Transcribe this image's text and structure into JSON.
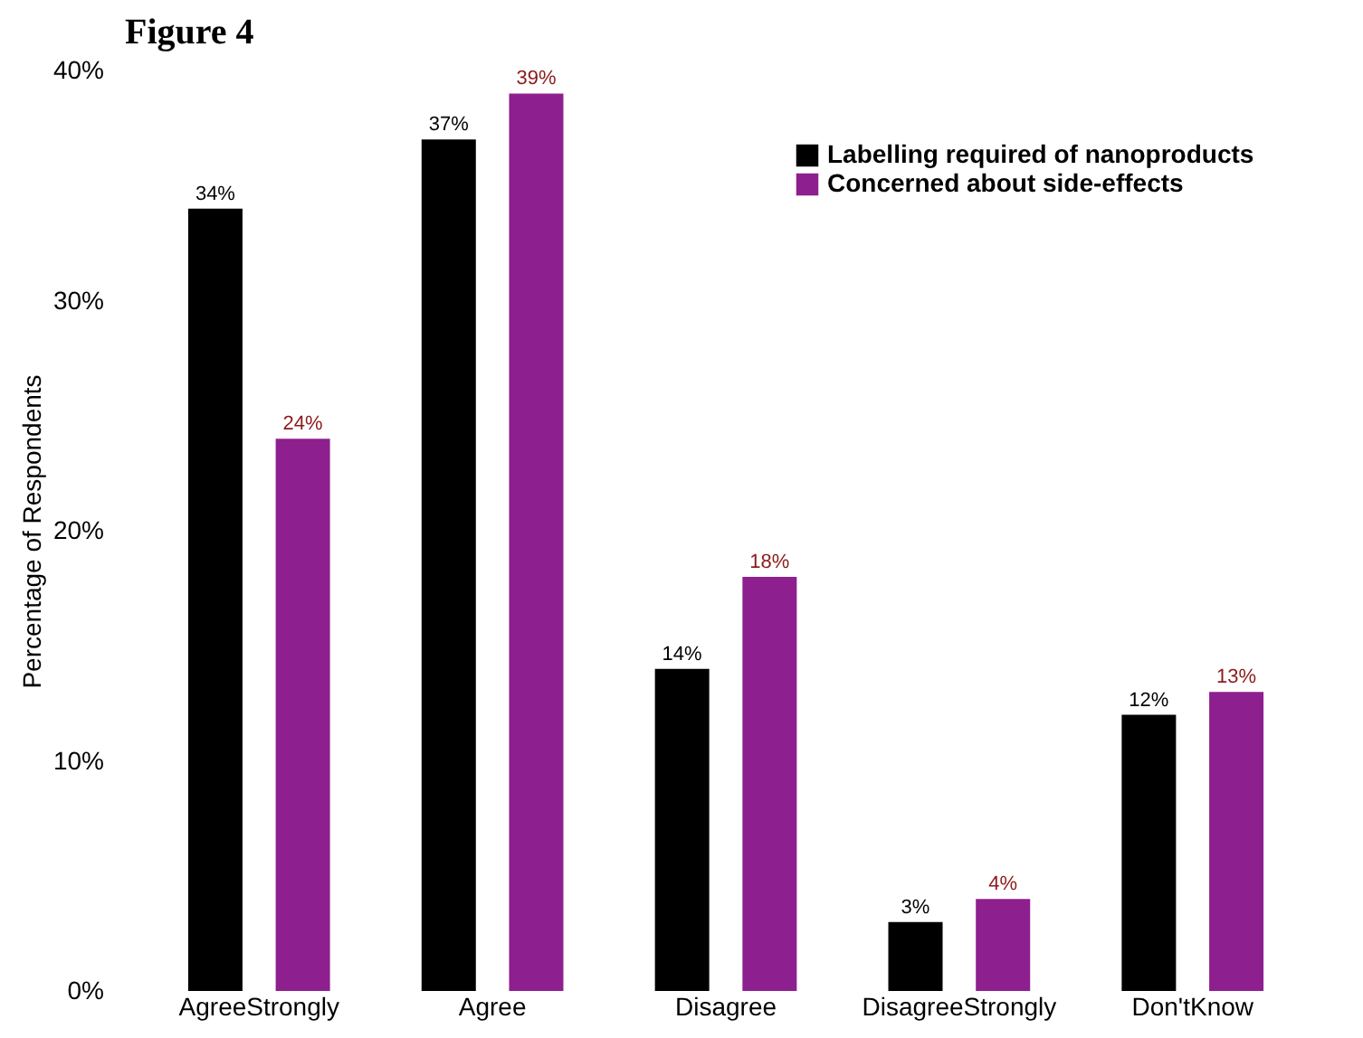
{
  "chart_data": {
    "type": "bar",
    "title": "Figure 4",
    "ylabel": "Percentage of Respondents",
    "categories": [
      "AgreeStrongly",
      "Agree",
      "Disagree",
      "DisagreeStrongly",
      "Don'tKnow"
    ],
    "series": [
      {
        "name": "Labelling required of nanoproducts",
        "color": "#000000",
        "values": [
          34,
          37,
          14,
          3,
          12
        ],
        "value_labels": [
          "34%",
          "37%",
          "14%",
          "3%",
          "12%"
        ]
      },
      {
        "name": "Concerned about side-effects",
        "color": "#8e1f8e",
        "values": [
          24,
          39,
          18,
          4,
          13
        ],
        "value_labels": [
          "24%",
          "39%",
          "18%",
          "4%",
          "13%"
        ]
      }
    ],
    "ylim": [
      0,
      40
    ],
    "yticks": [
      {
        "value": 0,
        "label": "0%"
      },
      {
        "value": 10,
        "label": "10%"
      },
      {
        "value": 20,
        "label": "20%"
      },
      {
        "value": 30,
        "label": "30%"
      },
      {
        "value": 40,
        "label": "40%"
      }
    ],
    "grid": false,
    "legend": "top right"
  }
}
